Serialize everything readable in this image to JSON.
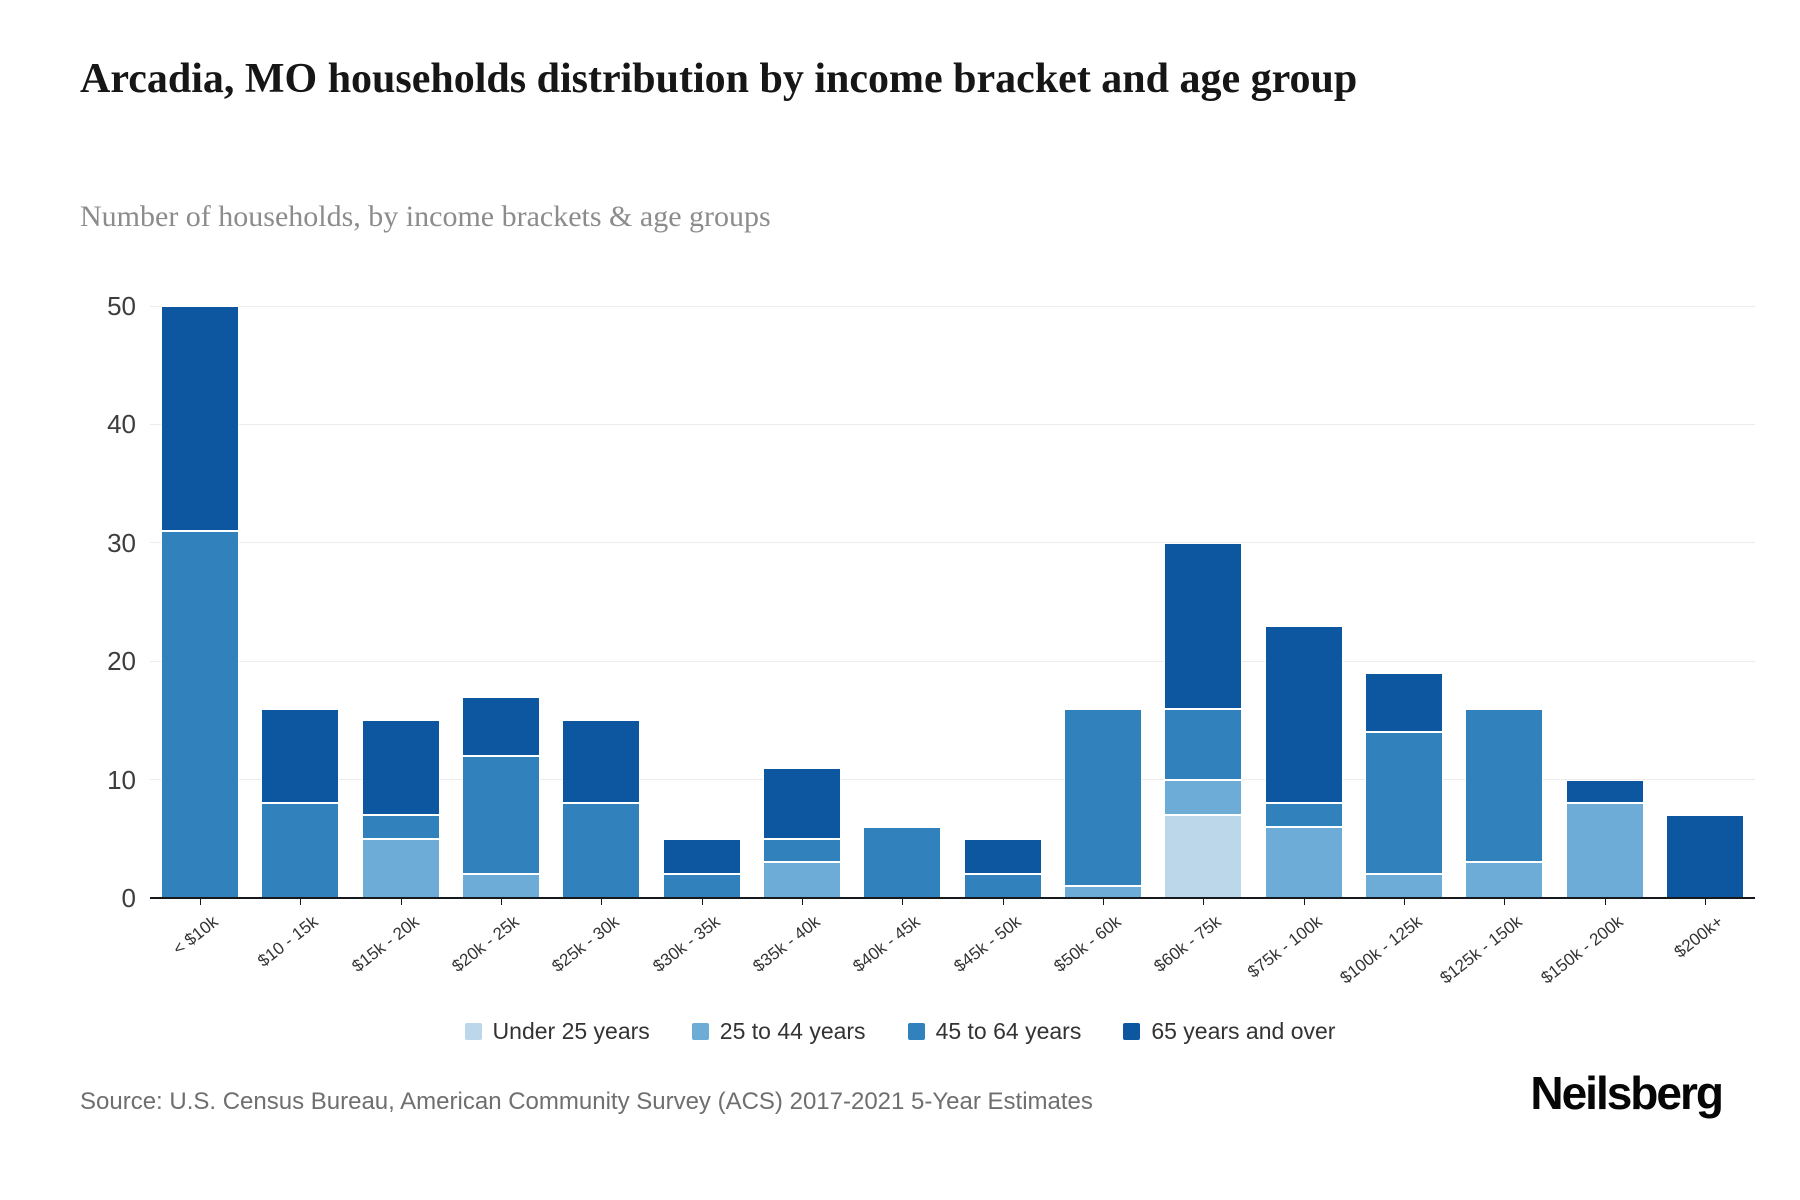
{
  "header": {
    "title": "Arcadia, MO households distribution by income bracket and age group",
    "subtitle": "Number of households, by income brackets & age groups"
  },
  "chart_data": {
    "type": "bar",
    "stacked": true,
    "title": "Arcadia, MO households distribution by income bracket and age group",
    "subtitle": "Number of households, by income brackets & age groups",
    "xlabel": "",
    "ylabel": "",
    "ylim": [
      0,
      50
    ],
    "yticks": [
      0,
      10,
      20,
      30,
      40,
      50
    ],
    "grid": "horizontal",
    "legend_position": "bottom",
    "categories": [
      "< $10k",
      "$10 - 15k",
      "$15k - 20k",
      "$20k - 25k",
      "$25k - 30k",
      "$30k - 35k",
      "$35k - 40k",
      "$40k - 45k",
      "$45k - 50k",
      "$50k - 60k",
      "$60k - 75k",
      "$75k - 100k",
      "$100k - 125k",
      "$125k - 150k",
      "$150k - 200k",
      "$200k+"
    ],
    "series": [
      {
        "name": "Under 25 years",
        "color": "#bcd7ea",
        "values": [
          0,
          0,
          0,
          0,
          0,
          0,
          0,
          0,
          0,
          0,
          7,
          0,
          0,
          0,
          0,
          0
        ]
      },
      {
        "name": "25 to 44 years",
        "color": "#6dacd7",
        "values": [
          0,
          0,
          5,
          2,
          0,
          0,
          3,
          0,
          0,
          1,
          3,
          6,
          2,
          3,
          8,
          0
        ]
      },
      {
        "name": "45 to 64 years",
        "color": "#3181bd",
        "values": [
          31,
          8,
          2,
          10,
          8,
          2,
          2,
          6,
          2,
          15,
          6,
          2,
          12,
          13,
          0,
          0
        ]
      },
      {
        "name": "65 years and over",
        "color": "#0d57a1",
        "values": [
          19,
          8,
          8,
          5,
          7,
          3,
          6,
          0,
          3,
          0,
          14,
          15,
          5,
          0,
          2,
          7
        ]
      }
    ],
    "totals": [
      50,
      16,
      15,
      17,
      15,
      5,
      11,
      6,
      5,
      16,
      30,
      23,
      19,
      16,
      10,
      7
    ]
  },
  "footer": {
    "source": "Source: U.S. Census Bureau, American Community Survey (ACS) 2017-2021 5-Year Estimates",
    "brand": "Neilsberg"
  }
}
